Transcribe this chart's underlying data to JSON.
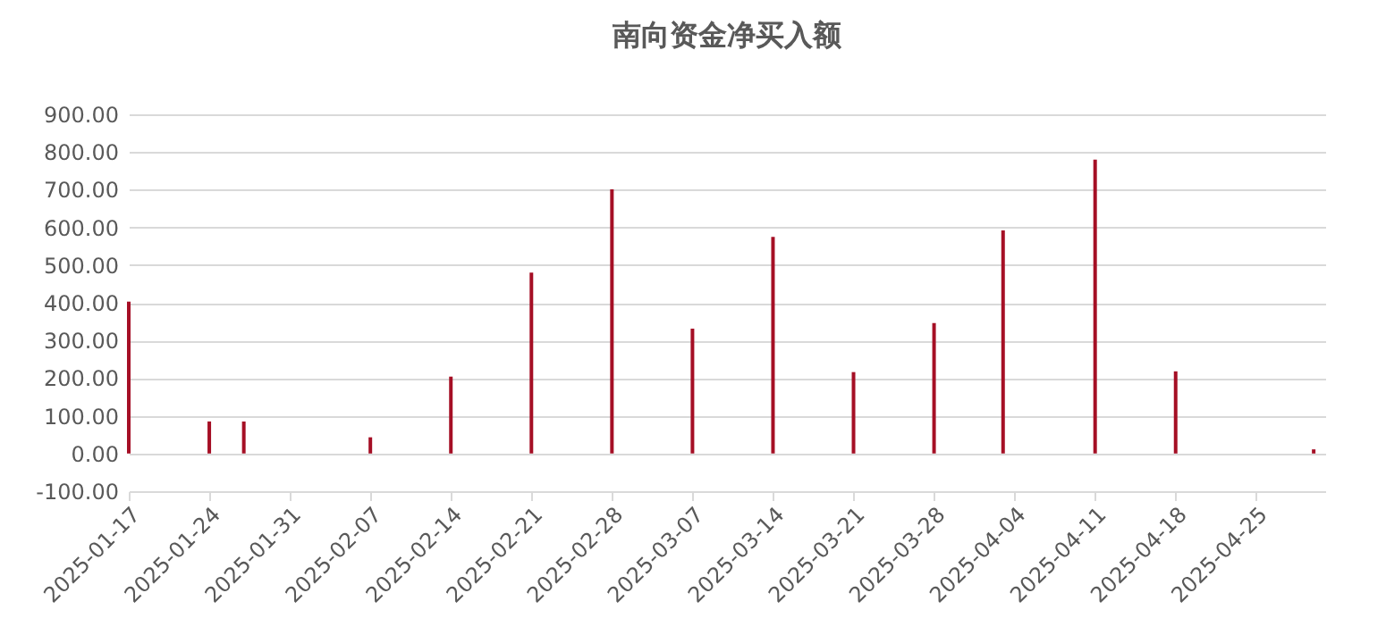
{
  "chart_data": {
    "type": "bar",
    "title": "南向资金净买入额",
    "x": [
      "2025-01-17",
      "2025-01-24",
      "2025-01-27",
      "2025-02-07",
      "2025-02-14",
      "2025-02-21",
      "2025-02-28",
      "2025-03-07",
      "2025-03-14",
      "2025-03-21",
      "2025-03-28",
      "2025-04-03",
      "2025-04-11",
      "2025-04-18",
      "2025-04-30"
    ],
    "series": [
      {
        "color": "#a50f25",
        "values": [
          403,
          85,
          85,
          43,
          204,
          480,
          701,
          331,
          575,
          216,
          346,
          592,
          780,
          218,
          11
        ]
      }
    ],
    "xlim": [
      "2025-01-17",
      "2025-05-01"
    ],
    "xticks": [
      "2025-01-17",
      "2025-01-24",
      "2025-01-31",
      "2025-02-07",
      "2025-02-14",
      "2025-02-21",
      "2025-02-28",
      "2025-03-07",
      "2025-03-14",
      "2025-03-21",
      "2025-03-28",
      "2025-04-04",
      "2025-04-11",
      "2025-04-18",
      "2025-04-25"
    ],
    "ylim": [
      -100,
      900
    ],
    "yticks": [
      {
        "value": -100,
        "label": "-100.00"
      },
      {
        "value": 0,
        "label": "0.00"
      },
      {
        "value": 100,
        "label": "100.00"
      },
      {
        "value": 200,
        "label": "200.00"
      },
      {
        "value": 300,
        "label": "300.00"
      },
      {
        "value": 400,
        "label": "400.00"
      },
      {
        "value": 500,
        "label": "500.00"
      },
      {
        "value": 600,
        "label": "600.00"
      },
      {
        "value": 700,
        "label": "700.00"
      },
      {
        "value": 800,
        "label": "800.00"
      },
      {
        "value": 900,
        "label": "900.00"
      }
    ],
    "grid": "y",
    "legend": false
  }
}
